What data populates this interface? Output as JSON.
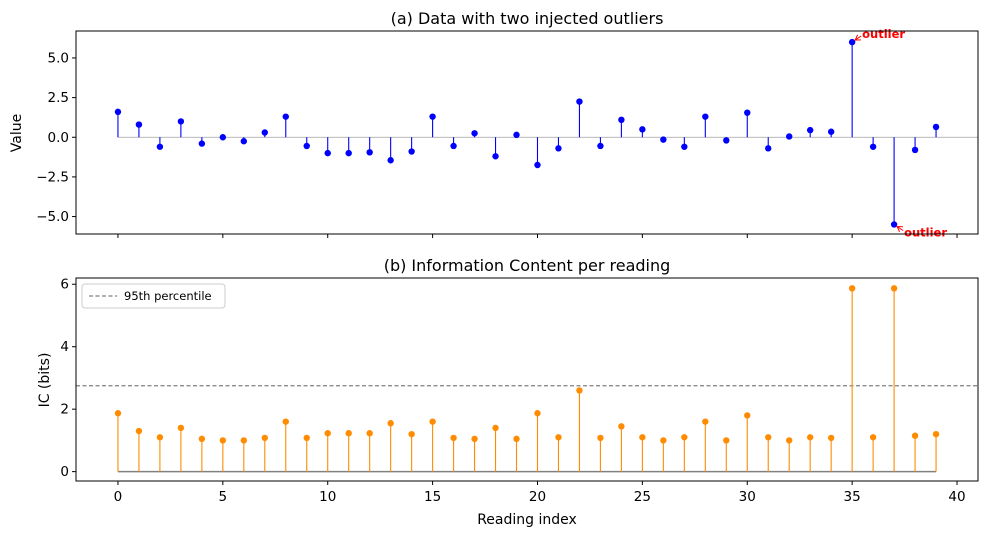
{
  "chart_data": [
    {
      "type": "stem",
      "title": "(a) Data with two injected outliers",
      "ylabel": "Value",
      "xlabel": "",
      "xlim": [
        -2,
        41
      ],
      "ylim": [
        -6.1,
        6.7
      ],
      "yticks": [
        -5.0,
        -2.5,
        0.0,
        2.5,
        5.0
      ],
      "ytick_labels": [
        "−5.0",
        "−2.5",
        "0.0",
        "2.5",
        "5.0"
      ],
      "xticks": [
        0,
        5,
        10,
        15,
        20,
        25,
        30,
        35,
        40
      ],
      "show_xtick_labels": false,
      "baseline": 0,
      "color": "#0000ff",
      "baseline_color": "#a0a0a0",
      "x": [
        0,
        1,
        2,
        3,
        4,
        5,
        6,
        7,
        8,
        9,
        10,
        11,
        12,
        13,
        14,
        15,
        16,
        17,
        18,
        19,
        20,
        21,
        22,
        23,
        24,
        25,
        26,
        27,
        28,
        29,
        30,
        31,
        32,
        33,
        34,
        35,
        36,
        37,
        38,
        39
      ],
      "y": [
        1.6,
        0.8,
        -0.6,
        1.0,
        -0.4,
        0.0,
        -0.25,
        0.3,
        1.3,
        -0.55,
        -1.0,
        -1.0,
        -0.95,
        -1.45,
        -0.9,
        1.3,
        -0.55,
        0.25,
        -1.2,
        0.15,
        -1.75,
        -0.7,
        2.25,
        -0.55,
        1.1,
        0.5,
        -0.15,
        -0.6,
        1.3,
        -0.2,
        1.55,
        -0.7,
        0.05,
        0.45,
        0.35,
        6.0,
        -0.6,
        -5.5,
        -0.8,
        0.65
      ],
      "annotations": [
        {
          "text": "outlier",
          "x": 35,
          "y": 6.0,
          "color": "#ff0000"
        },
        {
          "text": "outlier",
          "x": 37,
          "y": -5.5,
          "color": "#ff0000"
        }
      ]
    },
    {
      "type": "stem",
      "title": "(b) Information Content per reading",
      "ylabel": "IC (bits)",
      "xlabel": "Reading index",
      "xlim": [
        -2,
        41
      ],
      "ylim": [
        -0.3,
        6.2
      ],
      "yticks": [
        0,
        2,
        4,
        6
      ],
      "ytick_labels": [
        "0",
        "2",
        "4",
        "6"
      ],
      "xticks": [
        0,
        5,
        10,
        15,
        20,
        25,
        30,
        35,
        40
      ],
      "xtick_labels": [
        "0",
        "5",
        "10",
        "15",
        "20",
        "25",
        "30",
        "35",
        "40"
      ],
      "baseline": 0,
      "color": "#ff8c00",
      "baseline_color": "#808080",
      "x": [
        0,
        1,
        2,
        3,
        4,
        5,
        6,
        7,
        8,
        9,
        10,
        11,
        12,
        13,
        14,
        15,
        16,
        17,
        18,
        19,
        20,
        21,
        22,
        23,
        24,
        25,
        26,
        27,
        28,
        29,
        30,
        31,
        32,
        33,
        34,
        35,
        36,
        37,
        38,
        39
      ],
      "y": [
        1.87,
        1.3,
        1.1,
        1.4,
        1.05,
        1.0,
        1.0,
        1.08,
        1.6,
        1.08,
        1.23,
        1.23,
        1.23,
        1.55,
        1.2,
        1.6,
        1.08,
        1.05,
        1.4,
        1.05,
        1.87,
        1.1,
        2.6,
        1.08,
        1.45,
        1.1,
        1.0,
        1.1,
        1.6,
        1.0,
        1.8,
        1.1,
        1.0,
        1.1,
        1.08,
        5.87,
        1.1,
        5.87,
        1.15,
        1.2
      ],
      "hline": {
        "y": 2.75,
        "label": "95th percentile",
        "color": "#808080"
      },
      "legend": {
        "entries": [
          "95th percentile"
        ],
        "loc": "upper-left"
      }
    }
  ]
}
